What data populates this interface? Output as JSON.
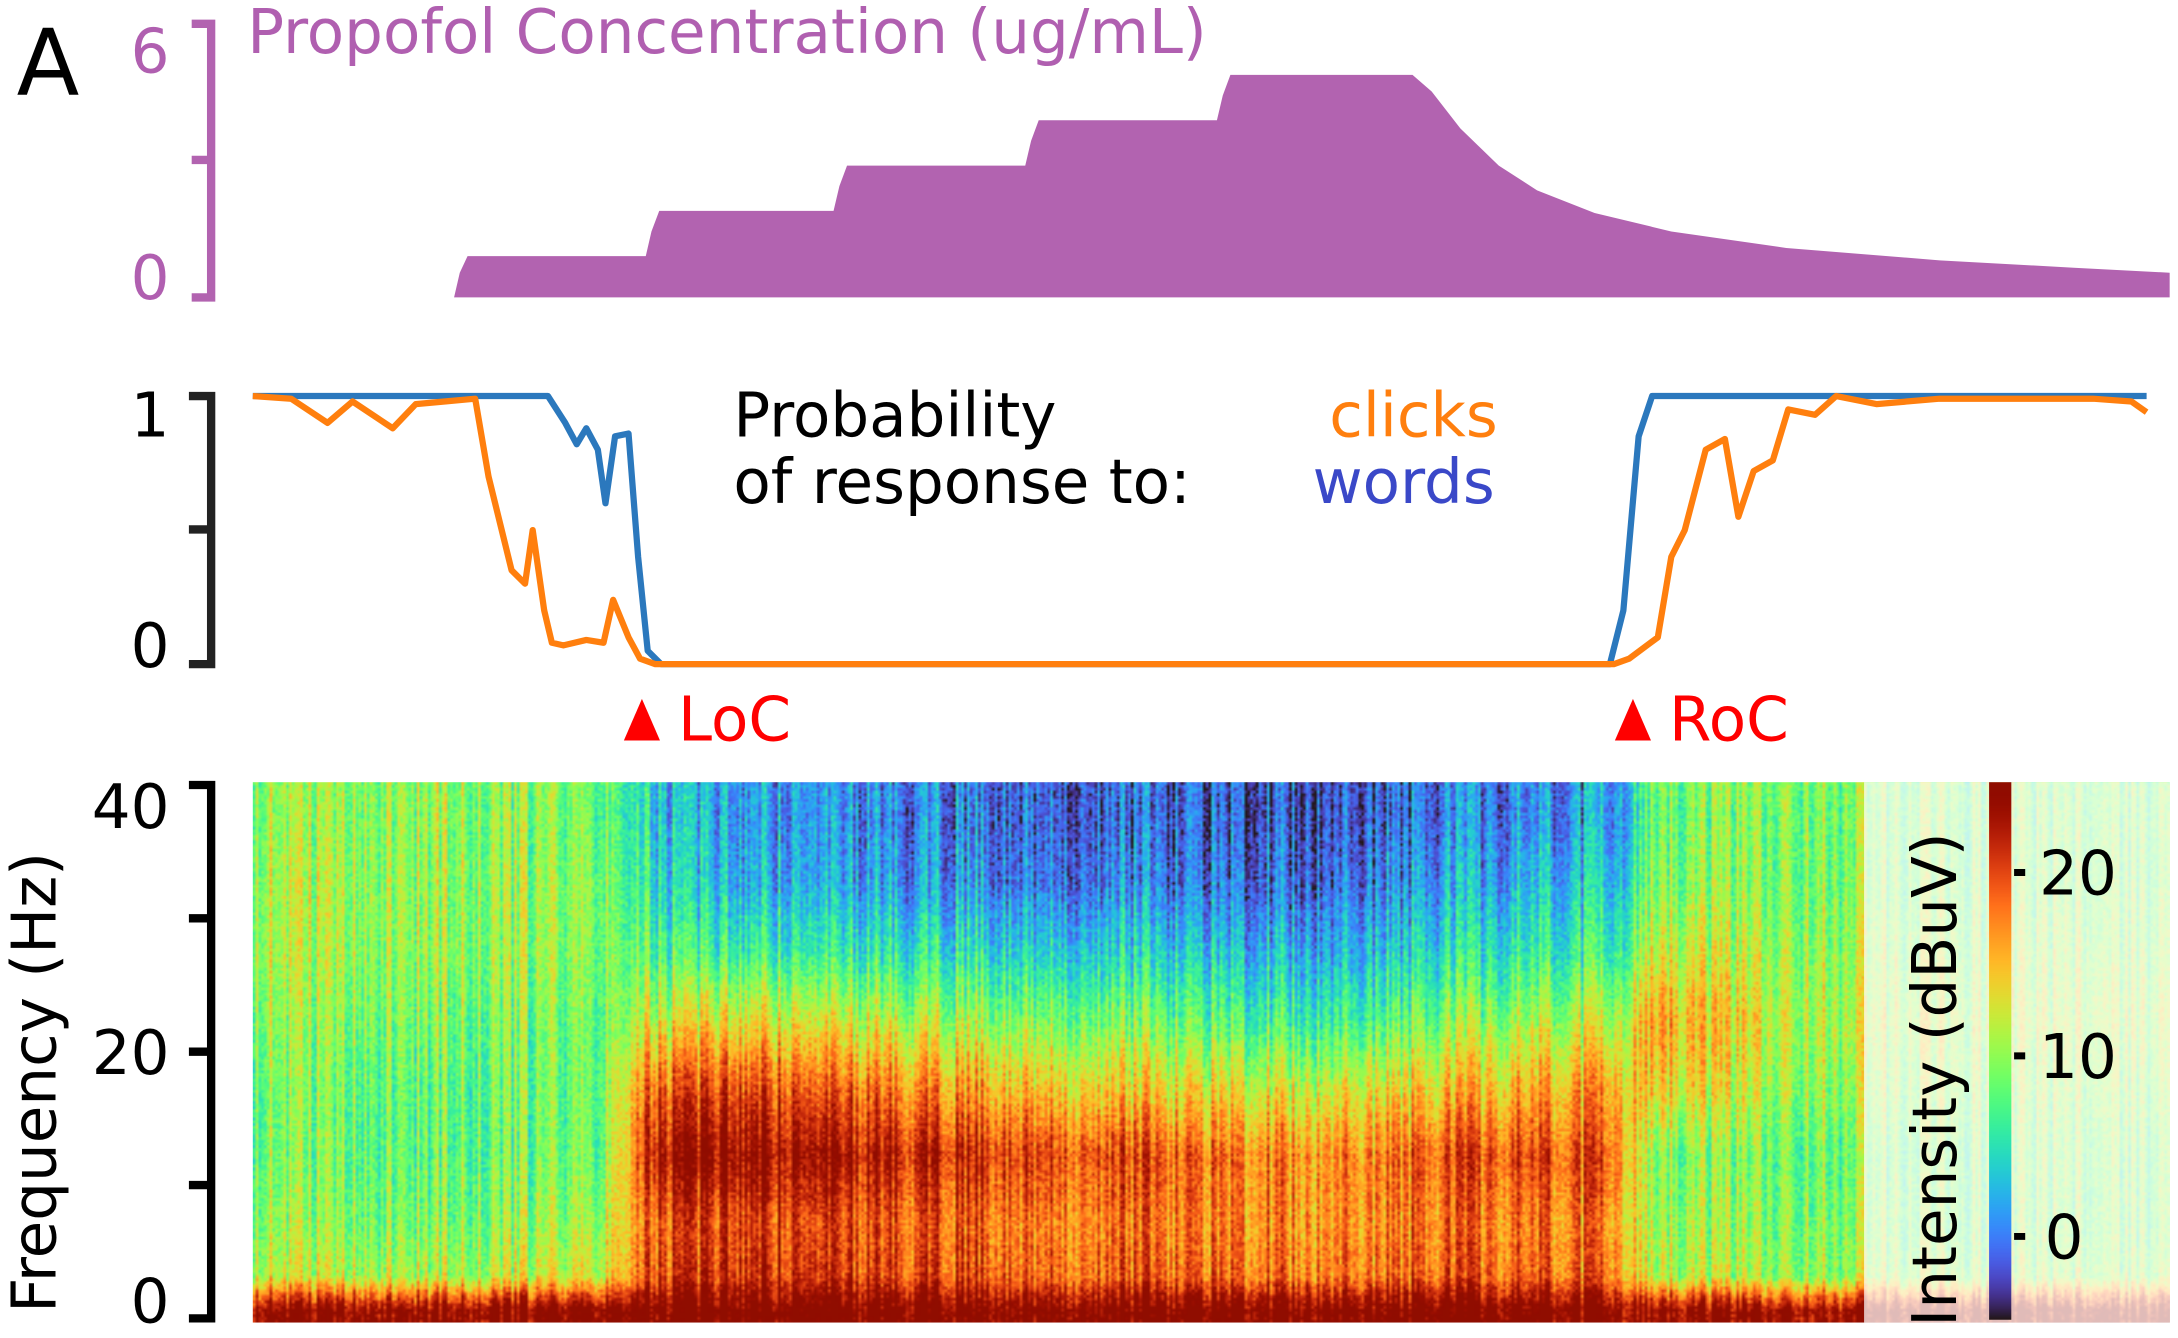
{
  "panel_label": "A",
  "colors": {
    "propofol": "#b263b0",
    "clicks": "#ff7f0e",
    "words_line": "#2b78bd",
    "words_text": "#3a48c8",
    "markers": "#ff0000",
    "axis": "#000000"
  },
  "chart_data": [
    {
      "type": "area",
      "title": "Propofol Concentration (ug/mL)",
      "ylim": [
        0,
        6
      ],
      "yticks": [
        "0",
        "6"
      ],
      "x": [
        0,
        10.5,
        10.8,
        11.2,
        20.5,
        20.8,
        21.2,
        30.3,
        30.6,
        31,
        40.3,
        40.6,
        41,
        50.3,
        50.6,
        51,
        60.5,
        61.5,
        63,
        65,
        67,
        70,
        74,
        80,
        88,
        95,
        100
      ],
      "y": [
        0,
        0,
        0.6,
        1.0,
        1.0,
        1.6,
        2.1,
        2.1,
        2.7,
        3.2,
        3.2,
        3.8,
        4.3,
        4.3,
        4.9,
        5.4,
        5.4,
        5.0,
        4.1,
        3.2,
        2.6,
        2.05,
        1.6,
        1.2,
        0.9,
        0.72,
        0.6
      ]
    },
    {
      "type": "line",
      "ylim": [
        0,
        1
      ],
      "yticks": [
        "0",
        "1"
      ],
      "legend_title_line1": "Probability",
      "legend_title_line2": "of response to:",
      "series": [
        {
          "name": "clicks",
          "x": [
            0,
            2,
            3.9,
            5.2,
            7.3,
            8.5,
            10,
            11.6,
            12.3,
            13.5,
            14.2,
            14.6,
            15.2,
            15.6,
            16.2,
            17.4,
            18.3,
            18.8,
            19.6,
            20.2,
            21,
            40,
            60,
            71,
            71.8,
            73.3,
            74,
            74.7,
            75.8,
            76.8,
            77.5,
            78.3,
            79.3,
            80.1,
            81.5,
            82.6,
            84.7,
            88,
            92,
            96,
            98,
            98.8
          ],
          "y": [
            1,
            0.99,
            0.9,
            0.98,
            0.88,
            0.97,
            0.98,
            0.99,
            0.7,
            0.35,
            0.3,
            0.5,
            0.2,
            0.08,
            0.07,
            0.09,
            0.08,
            0.24,
            0.1,
            0.02,
            0,
            0,
            0,
            0,
            0.02,
            0.1,
            0.4,
            0.5,
            0.8,
            0.84,
            0.55,
            0.72,
            0.76,
            0.95,
            0.93,
            1,
            0.97,
            0.99,
            0.99,
            0.99,
            0.98,
            0.94
          ]
        },
        {
          "name": "words",
          "x": [
            0,
            15.4,
            16.3,
            16.9,
            17.4,
            18,
            18.4,
            18.9,
            19.6,
            20.1,
            20.6,
            21.3,
            40,
            60,
            70.8,
            71.5,
            72.3,
            73,
            80,
            90,
            98.8
          ],
          "y": [
            1,
            1,
            0.9,
            0.82,
            0.88,
            0.8,
            0.6,
            0.85,
            0.86,
            0.4,
            0.05,
            0,
            0,
            0,
            0,
            0.2,
            0.85,
            1,
            1,
            1,
            1
          ]
        }
      ],
      "annotations": [
        {
          "label": "LoC",
          "x": 20.3
        },
        {
          "label": "RoC",
          "x": 72.0
        }
      ]
    },
    {
      "type": "heatmap",
      "ylabel": "Frequency (Hz)",
      "ylim": [
        0,
        40
      ],
      "yticks": [
        "0",
        "20",
        "40"
      ],
      "colorbar_label": "Intensity (dBuV)",
      "colorbar_ticks": [
        "0",
        "10",
        "20"
      ],
      "clim": [
        -5,
        25
      ],
      "colormap": "turbo",
      "freq_bins_hz": [
        1,
        3.5,
        7.5,
        12.5,
        17.5,
        22.5,
        27.5,
        32.5,
        37.5
      ],
      "time_x": [
        0,
        10,
        18,
        21,
        25,
        35,
        45,
        55,
        65,
        71,
        73,
        80,
        90,
        100
      ],
      "values_db": [
        [
          25,
          12,
          10,
          9,
          9,
          10,
          11,
          11,
          10
        ],
        [
          25,
          11,
          9,
          8,
          8,
          9,
          10,
          10,
          10
        ],
        [
          25,
          12,
          10,
          8,
          8,
          8,
          9,
          9,
          8
        ],
        [
          26,
          20,
          19,
          23,
          19,
          12,
          7,
          4,
          3
        ],
        [
          26,
          21,
          20,
          24,
          20,
          13,
          6,
          2,
          1
        ],
        [
          26,
          20,
          19,
          22,
          17,
          11,
          5,
          1,
          0
        ],
        [
          26,
          19,
          18,
          20,
          14,
          9,
          4,
          0,
          -1
        ],
        [
          26,
          18,
          17,
          17,
          12,
          6,
          2,
          -1,
          -2
        ],
        [
          26,
          19,
          18,
          20,
          15,
          10,
          5,
          2,
          0
        ],
        [
          25,
          18,
          17,
          19,
          16,
          11,
          6,
          3,
          1
        ],
        [
          24,
          11,
          10,
          9,
          14,
          16,
          12,
          9,
          8
        ],
        [
          24,
          10,
          9,
          8,
          10,
          11,
          10,
          9,
          9
        ],
        [
          24,
          10,
          9,
          9,
          10,
          11,
          10,
          9,
          9
        ],
        [
          24,
          10,
          9,
          9,
          10,
          11,
          10,
          9,
          9
        ]
      ]
    }
  ]
}
